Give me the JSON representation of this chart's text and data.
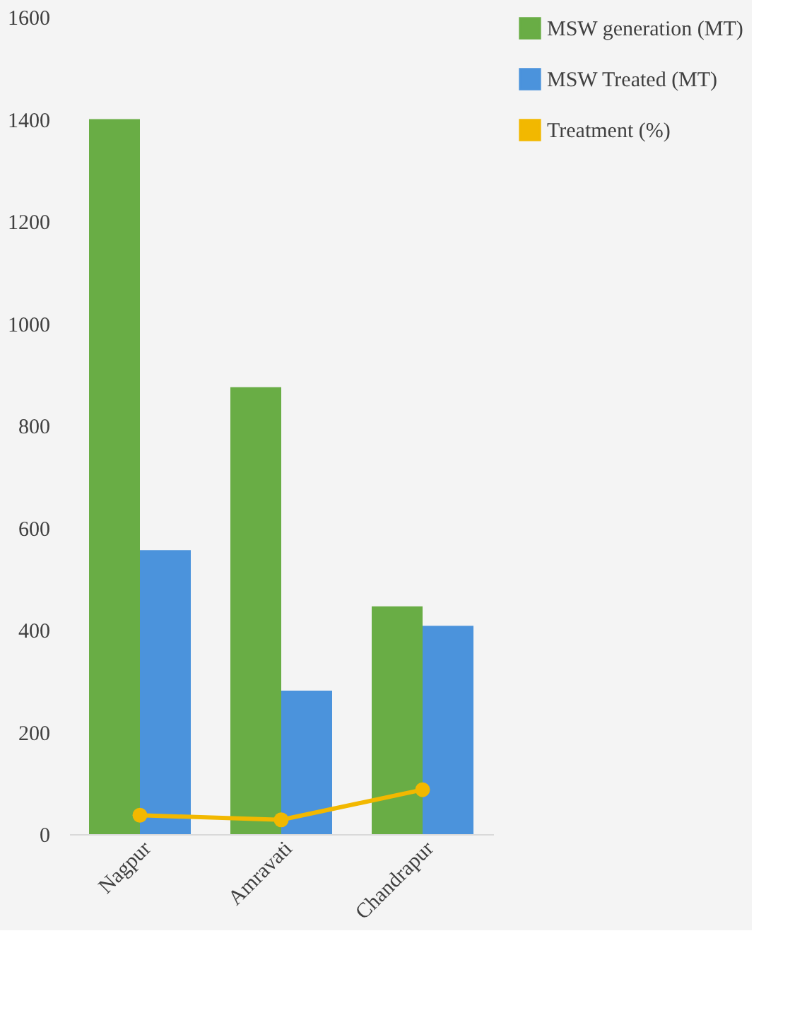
{
  "chart_data": {
    "type": "bar",
    "categories": [
      "Nagpur",
      "Amravati",
      "Chandrapur"
    ],
    "series": [
      {
        "name": "MSW generation (MT)",
        "color": "#69ad45",
        "values": [
          1400,
          875,
          446
        ]
      },
      {
        "name": "MSW Treated (MT)",
        "color": "#4b93dc",
        "values": [
          556,
          281,
          408
        ]
      },
      {
        "name": "Treatment (%)",
        "type": "line",
        "color": "#f2b800",
        "values": [
          37,
          28,
          87
        ],
        "marker": "circle"
      }
    ],
    "ylim": [
      0,
      1600
    ],
    "yticks": [
      0,
      200,
      400,
      600,
      800,
      1000,
      1200,
      1400,
      1600
    ],
    "grid": false,
    "legend": "right"
  }
}
